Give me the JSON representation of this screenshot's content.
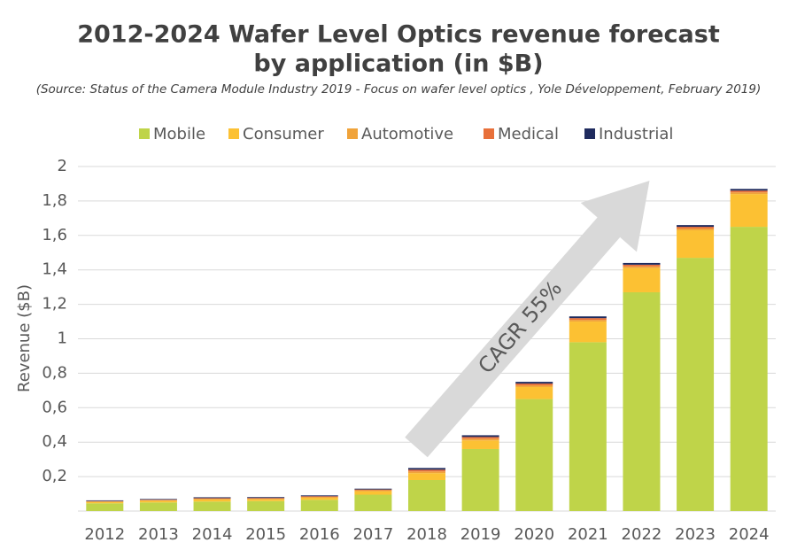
{
  "chart_data": {
    "type": "stacked_bar",
    "title": [
      "2012-2024 Wafer Level Optics revenue forecast",
      "by application (in $B)"
    ],
    "subtitle": "(Source: Status of the Camera Module Industry 2019 - Focus on wafer level optics , Yole Développement, February 2019)",
    "y_label": "Revenue ($B)",
    "annotation": "CAGR 55%",
    "categories": [
      "2012",
      "2013",
      "2014",
      "2015",
      "2016",
      "2017",
      "2018",
      "2019",
      "2020",
      "2021",
      "2022",
      "2023",
      "2024"
    ],
    "series": [
      {
        "name": "Mobile",
        "color": "#bfd449",
        "values": [
          0.045,
          0.05,
          0.055,
          0.058,
          0.065,
          0.095,
          0.18,
          0.36,
          0.65,
          0.98,
          1.27,
          1.47,
          1.65
        ]
      },
      {
        "name": "Consumer",
        "color": "#fcc133",
        "values": [
          0.008,
          0.01,
          0.012,
          0.01,
          0.012,
          0.02,
          0.04,
          0.05,
          0.07,
          0.12,
          0.14,
          0.16,
          0.19
        ]
      },
      {
        "name": "Automotive",
        "color": "#f0a33a",
        "values": [
          0.003,
          0.003,
          0.004,
          0.004,
          0.005,
          0.006,
          0.01,
          0.01,
          0.01,
          0.01,
          0.01,
          0.01,
          0.01
        ]
      },
      {
        "name": "Medical",
        "color": "#e8703a",
        "values": [
          0.002,
          0.003,
          0.004,
          0.004,
          0.004,
          0.004,
          0.01,
          0.01,
          0.01,
          0.01,
          0.01,
          0.01,
          0.01
        ]
      },
      {
        "name": "Industrial",
        "color": "#1f2b5e",
        "values": [
          0.004,
          0.004,
          0.005,
          0.005,
          0.005,
          0.005,
          0.01,
          0.01,
          0.01,
          0.01,
          0.01,
          0.01,
          0.01
        ]
      }
    ],
    "ylim": [
      0,
      2
    ],
    "yticks": [
      {
        "value": 0.2,
        "label": "0,2"
      },
      {
        "value": 0.4,
        "label": "0,4"
      },
      {
        "value": 0.6,
        "label": "0,6"
      },
      {
        "value": 0.8,
        "label": "0,8"
      },
      1,
      {
        "value": 1.2,
        "label": "1,2"
      },
      {
        "value": 1.4,
        "label": "1,4"
      },
      {
        "value": 1.6,
        "label": "1,6"
      },
      {
        "value": 1.8,
        "label": "1,8"
      },
      2
    ],
    "grid": true,
    "legend": "top"
  }
}
